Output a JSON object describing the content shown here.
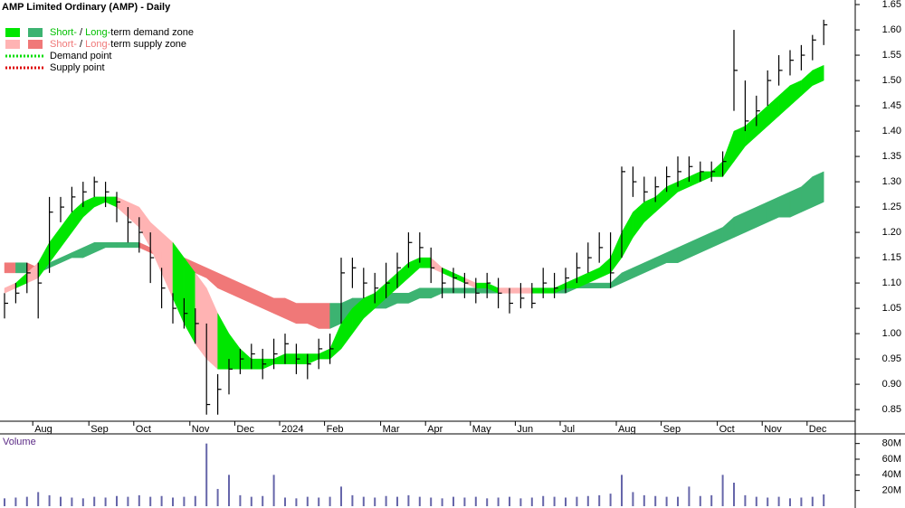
{
  "chart_data": {
    "type": "ohlc",
    "title": "AMP Limited Ordinary (AMP) - Daily",
    "categories": [
      null,
      null,
      null,
      "Aug",
      null,
      null,
      null,
      null,
      "Sep",
      null,
      null,
      null,
      "Oct",
      null,
      null,
      null,
      null,
      "Nov",
      null,
      null,
      null,
      "Dec",
      null,
      null,
      null,
      "2024",
      null,
      null,
      null,
      "Feb",
      null,
      null,
      null,
      null,
      "Mar",
      null,
      null,
      null,
      "Apr",
      null,
      null,
      null,
      "May",
      null,
      null,
      null,
      "Jun",
      null,
      null,
      null,
      "Jul",
      null,
      null,
      null,
      null,
      "Aug",
      null,
      null,
      null,
      "Sep",
      null,
      null,
      null,
      null,
      "Oct",
      null,
      null,
      null,
      "Nov",
      null,
      null,
      null,
      "Dec",
      null
    ],
    "high": [
      1.08,
      1.1,
      1.14,
      1.14,
      1.27,
      1.27,
      1.29,
      1.3,
      1.31,
      1.3,
      1.28,
      1.25,
      1.23,
      1.2,
      1.13,
      1.08,
      1.07,
      1.05,
      1.02,
      0.92,
      0.95,
      0.97,
      0.98,
      0.97,
      0.99,
      1.0,
      0.98,
      0.96,
      0.99,
      1.0,
      1.15,
      1.15,
      1.13,
      1.12,
      1.14,
      1.16,
      1.2,
      1.2,
      1.17,
      1.13,
      1.13,
      1.12,
      1.11,
      1.12,
      1.11,
      1.09,
      1.1,
      1.1,
      1.13,
      1.12,
      1.13,
      1.16,
      1.18,
      1.2,
      1.2,
      1.33,
      1.33,
      1.31,
      1.31,
      1.33,
      1.35,
      1.35,
      1.34,
      1.34,
      1.36,
      1.6,
      1.5,
      1.47,
      1.52,
      1.55,
      1.56,
      1.57,
      1.59,
      1.62
    ],
    "low": [
      1.03,
      1.06,
      1.08,
      1.03,
      1.12,
      1.22,
      1.24,
      1.25,
      1.27,
      1.25,
      1.22,
      1.18,
      1.16,
      1.1,
      1.05,
      1.02,
      1.01,
      0.98,
      0.84,
      0.84,
      0.88,
      0.92,
      0.93,
      0.91,
      0.93,
      0.94,
      0.92,
      0.91,
      0.93,
      0.94,
      1.02,
      1.09,
      1.07,
      1.06,
      1.07,
      1.09,
      1.13,
      1.14,
      1.1,
      1.07,
      1.08,
      1.07,
      1.06,
      1.07,
      1.05,
      1.04,
      1.05,
      1.05,
      1.07,
      1.07,
      1.08,
      1.1,
      1.12,
      1.14,
      1.09,
      1.15,
      1.27,
      1.26,
      1.26,
      1.28,
      1.29,
      1.3,
      1.3,
      1.3,
      1.31,
      1.44,
      1.4,
      1.41,
      1.45,
      1.49,
      1.51,
      1.52,
      1.54,
      1.57
    ],
    "close": [
      1.06,
      1.08,
      1.12,
      1.1,
      1.24,
      1.25,
      1.27,
      1.28,
      1.3,
      1.28,
      1.26,
      1.22,
      1.2,
      1.15,
      1.09,
      1.05,
      1.04,
      1.02,
      0.86,
      0.89,
      0.93,
      0.95,
      0.96,
      0.94,
      0.96,
      0.98,
      0.95,
      0.94,
      0.97,
      0.97,
      1.12,
      1.13,
      1.1,
      1.09,
      1.1,
      1.13,
      1.18,
      1.17,
      1.13,
      1.1,
      1.11,
      1.1,
      1.08,
      1.1,
      1.08,
      1.06,
      1.07,
      1.06,
      1.1,
      1.09,
      1.11,
      1.13,
      1.15,
      1.17,
      1.12,
      1.32,
      1.3,
      1.28,
      1.29,
      1.31,
      1.32,
      1.33,
      1.32,
      1.32,
      1.34,
      1.52,
      1.42,
      1.44,
      1.5,
      1.52,
      1.54,
      1.55,
      1.58,
      1.61
    ],
    "color": "#000000",
    "short_zone": {
      "upper": [
        1.09,
        1.1,
        1.12,
        1.14,
        1.18,
        1.21,
        1.24,
        1.26,
        1.27,
        1.27,
        1.27,
        1.26,
        1.25,
        1.22,
        1.2,
        1.18,
        1.15,
        1.12,
        1.09,
        1.04,
        1.0,
        0.97,
        0.95,
        0.95,
        0.95,
        0.96,
        0.96,
        0.96,
        0.96,
        0.97,
        1.02,
        1.05,
        1.07,
        1.08,
        1.1,
        1.12,
        1.14,
        1.15,
        1.15,
        1.13,
        1.12,
        1.11,
        1.1,
        1.1,
        1.09,
        1.09,
        1.09,
        1.09,
        1.09,
        1.09,
        1.1,
        1.11,
        1.12,
        1.13,
        1.15,
        1.2,
        1.24,
        1.26,
        1.27,
        1.29,
        1.3,
        1.31,
        1.32,
        1.32,
        1.34,
        1.4,
        1.41,
        1.43,
        1.45,
        1.47,
        1.49,
        1.5,
        1.52,
        1.53
      ],
      "lower": [
        1.08,
        1.09,
        1.1,
        1.11,
        1.14,
        1.17,
        1.2,
        1.23,
        1.25,
        1.26,
        1.25,
        1.23,
        1.21,
        1.17,
        1.12,
        1.07,
        1.02,
        0.98,
        0.95,
        0.93,
        0.93,
        0.93,
        0.93,
        0.93,
        0.94,
        0.94,
        0.94,
        0.94,
        0.95,
        0.95,
        0.97,
        1.0,
        1.03,
        1.05,
        1.07,
        1.09,
        1.11,
        1.13,
        1.13,
        1.12,
        1.11,
        1.1,
        1.09,
        1.09,
        1.08,
        1.08,
        1.08,
        1.08,
        1.08,
        1.08,
        1.09,
        1.09,
        1.1,
        1.11,
        1.12,
        1.15,
        1.19,
        1.22,
        1.24,
        1.26,
        1.28,
        1.29,
        1.3,
        1.31,
        1.31,
        1.34,
        1.37,
        1.39,
        1.41,
        1.43,
        1.45,
        1.47,
        1.49,
        1.5
      ],
      "demand_color": "#00e600",
      "supply_color": "#ffb3b3"
    },
    "long_zone": {
      "upper": [
        1.14,
        1.14,
        1.14,
        1.13,
        1.14,
        1.15,
        1.16,
        1.17,
        1.18,
        1.18,
        1.18,
        1.18,
        1.18,
        1.17,
        1.16,
        1.16,
        1.15,
        1.14,
        1.13,
        1.12,
        1.11,
        1.1,
        1.09,
        1.08,
        1.07,
        1.07,
        1.06,
        1.06,
        1.06,
        1.06,
        1.06,
        1.07,
        1.07,
        1.07,
        1.08,
        1.08,
        1.08,
        1.09,
        1.09,
        1.09,
        1.09,
        1.09,
        1.09,
        1.09,
        1.09,
        1.09,
        1.09,
        1.09,
        1.09,
        1.09,
        1.09,
        1.09,
        1.1,
        1.1,
        1.1,
        1.12,
        1.13,
        1.14,
        1.15,
        1.16,
        1.17,
        1.18,
        1.19,
        1.2,
        1.21,
        1.23,
        1.24,
        1.25,
        1.26,
        1.27,
        1.28,
        1.29,
        1.31,
        1.32
      ],
      "lower": [
        1.12,
        1.12,
        1.12,
        1.12,
        1.13,
        1.14,
        1.15,
        1.15,
        1.16,
        1.17,
        1.17,
        1.17,
        1.17,
        1.16,
        1.15,
        1.14,
        1.13,
        1.12,
        1.11,
        1.09,
        1.08,
        1.07,
        1.06,
        1.05,
        1.04,
        1.03,
        1.02,
        1.02,
        1.01,
        1.01,
        1.02,
        1.03,
        1.04,
        1.05,
        1.05,
        1.06,
        1.06,
        1.07,
        1.07,
        1.08,
        1.08,
        1.08,
        1.08,
        1.08,
        1.08,
        1.08,
        1.08,
        1.08,
        1.08,
        1.08,
        1.08,
        1.09,
        1.09,
        1.09,
        1.09,
        1.1,
        1.11,
        1.12,
        1.13,
        1.14,
        1.14,
        1.15,
        1.16,
        1.17,
        1.18,
        1.19,
        1.2,
        1.21,
        1.22,
        1.23,
        1.23,
        1.24,
        1.25,
        1.26
      ],
      "demand_color": "#3cb371",
      "supply_color": "#f07878"
    },
    "ylim": [
      0.827,
      1.659
    ],
    "yticks": [
      0.85,
      {
        "value": 0.9,
        "label": "0.90"
      },
      0.95,
      {
        "value": 1.0,
        "label": "1.00"
      },
      1.05,
      {
        "value": 1.1,
        "label": "1.10"
      },
      1.15,
      {
        "value": 1.2,
        "label": "1.20"
      },
      1.25,
      {
        "value": 1.3,
        "label": "1.30"
      },
      1.35,
      {
        "value": 1.4,
        "label": "1.40"
      },
      1.45,
      {
        "value": 1.5,
        "label": "1.50"
      },
      1.55,
      {
        "value": 1.6,
        "label": "1.60"
      },
      1.65
    ],
    "legend": [
      {
        "short": "Short-",
        "sep": " / ",
        "long": "Long-",
        "rest": "term demand zone",
        "short_color": "#00e600",
        "long_color": "#3cb371",
        "text_color": "#00c000"
      },
      {
        "short": "Short-",
        "sep": " / ",
        "long": "Long-",
        "rest": "term supply zone",
        "short_color": "#ffb3b3",
        "long_color": "#f07878",
        "text_color": "#f07878"
      },
      {
        "label": "Demand point",
        "color": "#00dd00"
      },
      {
        "label": "Supply point",
        "color": "#dd0000"
      }
    ],
    "volume": {
      "label": "Volume",
      "color": "#6666aa",
      "values": [
        10,
        11,
        12,
        18,
        14,
        12,
        11,
        10,
        12,
        11,
        13,
        12,
        14,
        12,
        13,
        11,
        12,
        13,
        80,
        22,
        40,
        14,
        12,
        13,
        40,
        11,
        10,
        12,
        11,
        12,
        25,
        14,
        12,
        11,
        13,
        12,
        14,
        12,
        11,
        10,
        12,
        11,
        12,
        10,
        11,
        12,
        10,
        11,
        13,
        12,
        11,
        12,
        13,
        14,
        16,
        40,
        18,
        14,
        13,
        12,
        12,
        25,
        13,
        14,
        40,
        30,
        14,
        12,
        11,
        12,
        10,
        11,
        12,
        15
      ],
      "ylim": [
        0,
        90
      ],
      "yticks": [
        {
          "value": 20,
          "label": "20M"
        },
        {
          "value": 40,
          "label": "40M"
        },
        {
          "value": 60,
          "label": "60M"
        },
        {
          "value": 80,
          "label": "80M"
        }
      ]
    }
  }
}
